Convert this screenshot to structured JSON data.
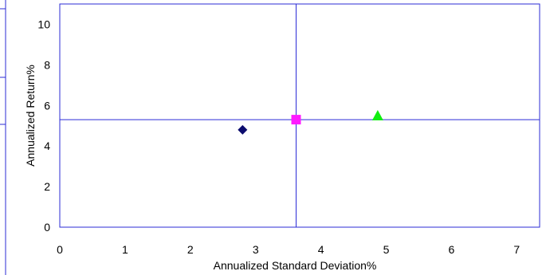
{
  "chart_data": {
    "type": "scatter",
    "xlabel": "Annualized Standard Deviation%",
    "ylabel": "Annualized Return%",
    "xlim": [
      0,
      7.35
    ],
    "ylim": [
      0,
      11
    ],
    "x_ticks": [
      "0",
      "1",
      "2",
      "3",
      "4",
      "5",
      "6",
      "7"
    ],
    "y_ticks": [
      "0",
      "2",
      "4",
      "6",
      "8",
      "10"
    ],
    "grid": false,
    "legend": "none",
    "reference_lines": {
      "x": 3.62,
      "y": 5.3,
      "color": "#2b2bd6"
    },
    "frame_color": "#2b2bd6",
    "series": [
      {
        "marker": "diamond",
        "color": "#0c0c6e",
        "points": [
          {
            "x": 2.8,
            "y": 4.8
          }
        ]
      },
      {
        "marker": "square",
        "color": "#ff1aff",
        "points": [
          {
            "x": 3.62,
            "y": 5.3
          }
        ]
      },
      {
        "marker": "triangle",
        "color": "#11ee11",
        "points": [
          {
            "x": 4.87,
            "y": 5.5
          }
        ]
      }
    ]
  }
}
